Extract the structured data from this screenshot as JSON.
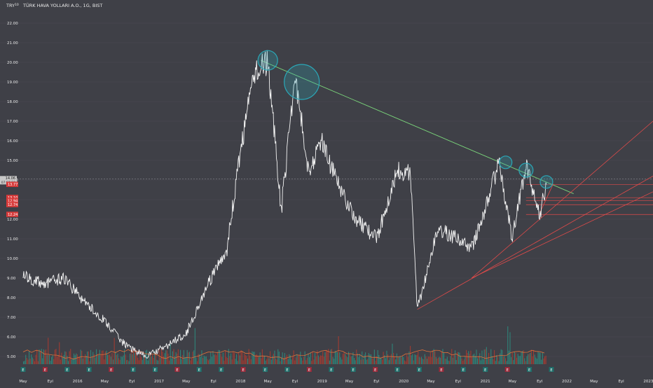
{
  "header": {
    "currency": "TRY",
    "currency_sup": "10",
    "symbol_title": "TÜRK HAVA YOLLARI A.O., 1G, BIST"
  },
  "colors": {
    "background": "#3f4047",
    "price_line": "#f4f4f4",
    "axis_text": "#e8e8e8",
    "trendline_green": "#7bd67b",
    "support_red": "#e04a4a",
    "circle_teal": "#2aa8b8",
    "label_red": "#d83a3a",
    "current_label": "#c8c8c8",
    "volume_orange": "#e0703a",
    "volume_red": "#c0392b",
    "volume_teal": "#2a9a8a",
    "event_teal": "#1f6e6a",
    "event_red": "#9a2a3a"
  },
  "chart_data": {
    "type": "line",
    "title": "TÜRK HAVA YOLLARI A.O., 1G, BIST",
    "ylim": [
      4.5,
      22.5
    ],
    "y_ticks": [
      "22.00",
      "21.00",
      "20.00",
      "19.00",
      "18.00",
      "17.00",
      "16.00",
      "15.00",
      "14.00",
      "13.00",
      "12.00",
      "11.00",
      "10.00",
      "9.00",
      "8.00",
      "7.00",
      "6.00",
      "5.00"
    ],
    "x_tick_labels": [
      "May",
      "Eyl",
      "2016",
      "May",
      "Eyl",
      "2017",
      "May",
      "Eyl",
      "2018",
      "May",
      "Eyl",
      "2019",
      "May",
      "Eyl",
      "2020",
      "May",
      "Eyl",
      "2021",
      "May",
      "Eyl",
      "2022",
      "May",
      "Eyl",
      "2023"
    ],
    "x_start": "2015-05",
    "series": [
      {
        "x": [
          "2015-05",
          "2015-08",
          "2015-11",
          "2016-02",
          "2016-05",
          "2016-08",
          "2016-11",
          "2017-02",
          "2017-05",
          "2017-08",
          "2017-11",
          "2018-01",
          "2018-03",
          "2018-05",
          "2018-07",
          "2018-09",
          "2018-11",
          "2019-01",
          "2019-03",
          "2019-06",
          "2019-09",
          "2019-12",
          "2020-02",
          "2020-03",
          "2020-06",
          "2020-09",
          "2020-11",
          "2021-01",
          "2021-03",
          "2021-05",
          "2021-07",
          "2021-09",
          "2021-10"
        ],
        "values": [
          9.1,
          8.7,
          9.0,
          7.8,
          6.8,
          5.6,
          5.0,
          5.5,
          6.2,
          8.5,
          10.5,
          15.5,
          19.5,
          20.0,
          12.5,
          19.3,
          14.5,
          16.0,
          14.0,
          12.0,
          11.0,
          14.5,
          14.3,
          7.4,
          11.5,
          11.0,
          10.5,
          12.5,
          14.9,
          11.0,
          14.8,
          12.2,
          13.77
        ]
      }
    ],
    "annotations": {
      "current_price": "14.06",
      "countdown": "07:57:59",
      "price_labels": [
        "13.77",
        "13.10",
        "12.94",
        "12.74",
        "12.24"
      ],
      "resistance_trendline": {
        "from": [
          "2018-04",
          20.1
        ],
        "to": [
          "2022-02",
          13.3
        ]
      },
      "horizontal_levels": [
        13.77,
        13.1,
        12.94,
        12.74,
        12.24
      ],
      "highlight_circles": [
        "2018-05",
        "2018-10",
        "2021-04",
        "2021-07",
        "2021-10"
      ],
      "event_markers": [
        "E",
        "E",
        "E",
        "E",
        "E",
        "E",
        "E",
        "E",
        "E",
        "E",
        "E",
        "E",
        "E",
        "E",
        "E",
        "E",
        "E",
        "E",
        "E",
        "E",
        "E",
        "E",
        "E",
        "E",
        "E"
      ]
    }
  }
}
